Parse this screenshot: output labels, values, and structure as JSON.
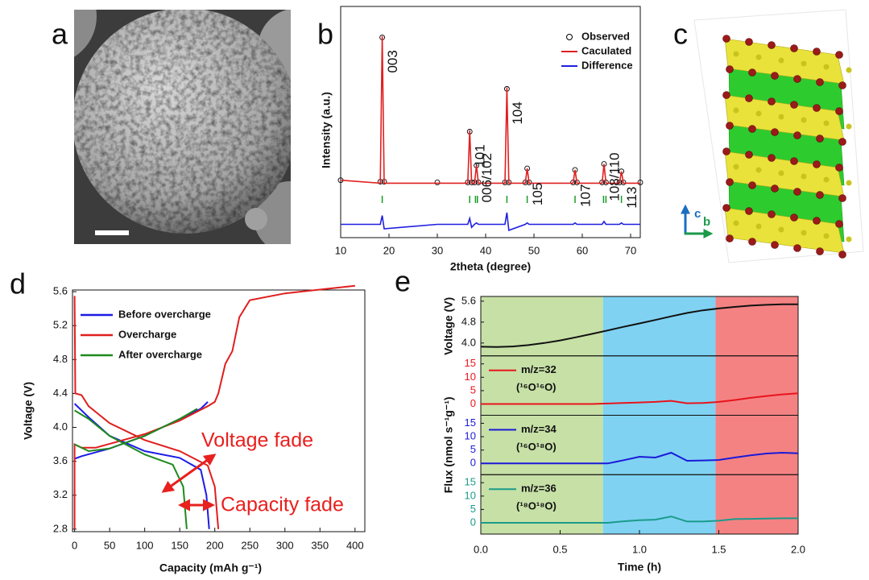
{
  "panel_labels": [
    "a",
    "b",
    "c",
    "d",
    "e"
  ],
  "structure_axes": [
    "c",
    "b"
  ],
  "chart_data": [
    {
      "type": "xrd",
      "x_label": "2theta (degree)",
      "y_label": "Intensity (a.u.)",
      "xlim": [
        10,
        72
      ],
      "xticks": [
        10,
        20,
        30,
        40,
        50,
        60,
        70
      ],
      "ylim": [
        -37,
        120
      ],
      "x": [
        10,
        18.2,
        18.6,
        19.0,
        30,
        36.3,
        36.7,
        37.1,
        37.7,
        38.1,
        38.5,
        44.0,
        44.4,
        44.8,
        48.2,
        48.6,
        49.0,
        58.1,
        58.5,
        58.9,
        64.1,
        64.5,
        64.9,
        67.7,
        68.1,
        68.5,
        72
      ],
      "series": [
        {
          "name": "Observed",
          "color": "#000000",
          "values": [
            2,
            1,
            99,
            1,
            0.5,
            0.5,
            35,
            0.5,
            0.5,
            12,
            0.5,
            0.5,
            64,
            0.5,
            0.5,
            10,
            0.5,
            0.5,
            9,
            0.5,
            0.5,
            13,
            0.5,
            0.5,
            8,
            0.5,
            0.5
          ]
        },
        {
          "name": "Caculated",
          "color": "#e02020",
          "values": [
            2,
            0,
            100,
            0,
            0,
            0,
            36,
            0,
            0,
            12,
            0,
            0,
            65,
            0,
            0,
            10,
            0,
            0,
            9,
            0,
            0,
            13,
            0,
            0,
            8,
            0,
            0
          ]
        },
        {
          "name": "Difference",
          "color": "#1f1fe0",
          "values": [
            -28,
            -28,
            -22,
            -31,
            -28,
            -28,
            -24,
            -30,
            -28,
            -27,
            -28,
            -28,
            -20,
            -32,
            -28,
            -27,
            -28,
            -28,
            -27,
            -28,
            -28,
            -26,
            -28,
            -28,
            -27,
            -28,
            -28
          ]
        }
      ],
      "bragg": {
        "color": "#1a9a2a",
        "x": [
          18.6,
          36.7,
          37.9,
          38.3,
          44.4,
          48.6,
          58.5,
          64.4,
          64.9,
          68.1
        ]
      },
      "peaks": [
        {
          "label": "003",
          "x": 18.6
        },
        {
          "label": "101",
          "x": 36.7
        },
        {
          "label": "006/102",
          "x": 38.1
        },
        {
          "label": "104",
          "x": 44.4
        },
        {
          "label": "105",
          "x": 48.6
        },
        {
          "label": "107",
          "x": 58.5
        },
        {
          "label": "108/110",
          "x": 64.5
        },
        {
          "label": "113",
          "x": 68.1
        }
      ]
    },
    {
      "type": "line",
      "x_label": "Capacity (mAh g⁻¹)",
      "y_label": "Voltage (V)",
      "xlim": [
        -3,
        414
      ],
      "xticks": [
        0,
        50,
        100,
        150,
        200,
        250,
        300,
        350,
        400
      ],
      "ylim": [
        2.77,
        5.62
      ],
      "yticks": [
        2.8,
        3.2,
        3.6,
        {
          "value": 4,
          "label": "4.0"
        },
        4.4,
        4.8,
        5.2,
        5.6
      ],
      "legend": "upper left",
      "series": [
        {
          "name": "Before overcharge",
          "color": "#1c1ce6",
          "x": [
            0,
            10,
            50,
            100,
            150,
            180,
            190,
            null,
            0,
            20,
            50,
            100,
            150,
            180,
            188,
            192
          ],
          "values": [
            3.63,
            3.66,
            3.75,
            3.9,
            4.1,
            4.22,
            4.3,
            null,
            4.28,
            4.12,
            3.9,
            3.72,
            3.64,
            3.5,
            3.2,
            2.8
          ]
        },
        {
          "name": "Overcharge",
          "color": "#e01e1e",
          "x": [
            0,
            0,
            10,
            30,
            100,
            150,
            190,
            200,
            205,
            215,
            225,
            235,
            250,
            300,
            400,
            null,
            0,
            1,
            10,
            20,
            50,
            100,
            150,
            190,
            200,
            205
          ],
          "values": [
            2.8,
            3.8,
            3.76,
            3.76,
            3.92,
            4.08,
            4.25,
            4.3,
            4.4,
            4.75,
            4.9,
            5.3,
            5.5,
            5.58,
            5.67,
            null,
            5.55,
            4.4,
            4.38,
            4.25,
            4.05,
            3.85,
            3.72,
            3.55,
            3.3,
            2.8
          ]
        },
        {
          "name": "After overcharge",
          "color": "#1e8a1e",
          "x": [
            0,
            20,
            50,
            100,
            150,
            175,
            null,
            0,
            20,
            50,
            100,
            140,
            155,
            160
          ],
          "values": [
            3.8,
            3.72,
            3.75,
            3.9,
            4.1,
            4.22,
            null,
            4.2,
            4.1,
            3.9,
            3.68,
            3.56,
            3.3,
            2.8
          ]
        }
      ],
      "annotations": [
        "Voltage fade",
        "Capacity fade"
      ]
    },
    {
      "type": "stacked-line",
      "x_label": "Time (h)",
      "y_labels": [
        "Voltage (V)",
        "Flux (nmol s⁻¹g⁻¹)"
      ],
      "xlim": [
        0,
        2
      ],
      "xticks": [
        {
          "value": 0,
          "label": "0.0"
        },
        {
          "value": 0.5,
          "label": "0.5"
        },
        {
          "value": 1,
          "label": "1.0"
        },
        {
          "value": 1.5,
          "label": "1.5"
        },
        {
          "value": 2,
          "label": "2.0"
        }
      ],
      "regions": [
        {
          "from": 0,
          "to": 0.77,
          "color": "#c6e0a6"
        },
        {
          "from": 0.77,
          "to": 1.48,
          "color": "#7fd2f2"
        },
        {
          "from": 1.48,
          "to": 2,
          "color": "#f48283"
        }
      ],
      "x": [
        0,
        0.1,
        0.2,
        0.3,
        0.4,
        0.5,
        0.6,
        0.7,
        0.8,
        0.9,
        1.0,
        1.1,
        1.2,
        1.3,
        1.4,
        1.5,
        1.6,
        1.7,
        1.8,
        1.9,
        2.0
      ],
      "subplots": [
        {
          "ylim": [
            3.51,
            5.78
          ],
          "yticks": [
            {
              "value": 4,
              "label": "4.0"
            },
            4.8,
            5.6
          ],
          "series": [
            {
              "color": "#111111",
              "values": [
                3.86,
                3.85,
                3.87,
                3.92,
                4.0,
                4.1,
                4.22,
                4.35,
                4.48,
                4.62,
                4.75,
                4.88,
                5.02,
                5.15,
                5.25,
                5.32,
                5.38,
                5.43,
                5.46,
                5.48,
                5.48
              ]
            }
          ]
        },
        {
          "ylim": [
            -4.2,
            18
          ],
          "yticks": [
            0,
            5,
            10,
            15
          ],
          "series": [
            {
              "name": "m/z=32",
              "species": "(¹⁶O¹⁶O)",
              "color": "#e8141c",
              "values": [
                0,
                0,
                0,
                0,
                0,
                0,
                0,
                0,
                0.2,
                0.4,
                0.6,
                0.8,
                1.2,
                0.3,
                0.4,
                0.8,
                1.5,
                2.3,
                3.0,
                3.6,
                4.0
              ]
            }
          ]
        },
        {
          "ylim": [
            -4.2,
            18
          ],
          "yticks": [
            0,
            5,
            10,
            15
          ],
          "series": [
            {
              "name": "m/z=34",
              "species": "(¹⁶O¹⁸O)",
              "color": "#1a1ad8",
              "values": [
                0,
                0,
                0,
                0,
                0,
                0,
                0,
                0,
                0,
                1.2,
                2.5,
                2.2,
                4.0,
                1.0,
                1.1,
                1.3,
                2.2,
                3.0,
                3.7,
                4.0,
                3.8
              ]
            }
          ]
        },
        {
          "ylim": [
            -4.2,
            18
          ],
          "yticks": [
            0,
            5,
            10,
            15
          ],
          "series": [
            {
              "name": "m/z=36",
              "species": "(¹⁸O¹⁸O)",
              "color": "#1b9b8a",
              "values": [
                0,
                0,
                0,
                0,
                0,
                0,
                0,
                0,
                0,
                0.6,
                1.0,
                1.2,
                2.4,
                0.5,
                0.5,
                0.8,
                1.4,
                1.5,
                1.6,
                1.7,
                1.7
              ]
            }
          ]
        }
      ]
    }
  ]
}
